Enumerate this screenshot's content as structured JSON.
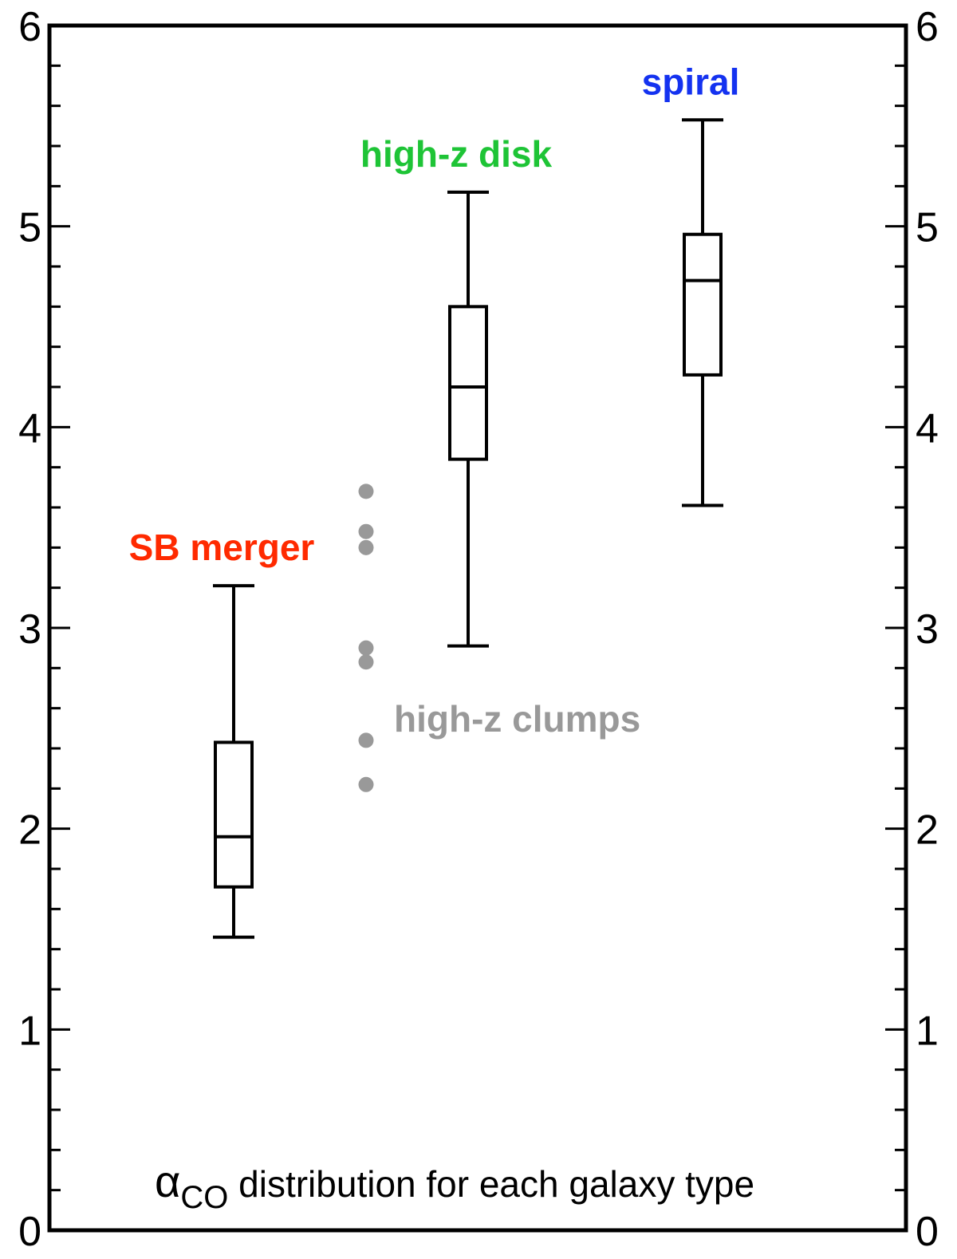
{
  "chart_data": {
    "type": "box",
    "ylim": [
      0,
      6
    ],
    "y_ticks": [
      "0",
      "1",
      "2",
      "3",
      "4",
      "5",
      "6"
    ],
    "y_minor_step": 0.2,
    "annotation": {
      "symbol": "α",
      "subscript": "CO",
      "text": "distribution for each galaxy type"
    },
    "boxes": [
      {
        "name": "SB merger",
        "color": "#ff2a00",
        "x": 1,
        "whisker_low": 1.46,
        "q1": 1.71,
        "median": 1.96,
        "q3": 2.43,
        "whisker_high": 3.21
      },
      {
        "name": "high-z disk",
        "color": "#1ec436",
        "x": 2,
        "whisker_low": 2.91,
        "q1": 3.84,
        "median": 4.2,
        "q3": 4.6,
        "whisker_high": 5.17
      },
      {
        "name": "spiral",
        "color": "#1432f0",
        "x": 3,
        "whisker_low": 3.61,
        "q1": 4.26,
        "median": 4.73,
        "q3": 4.96,
        "whisker_high": 5.53
      }
    ],
    "points": {
      "name": "high-z clumps",
      "color": "#999999",
      "x": 1.5,
      "values": [
        3.68,
        3.48,
        3.4,
        2.9,
        2.83,
        2.44,
        2.22
      ]
    }
  }
}
